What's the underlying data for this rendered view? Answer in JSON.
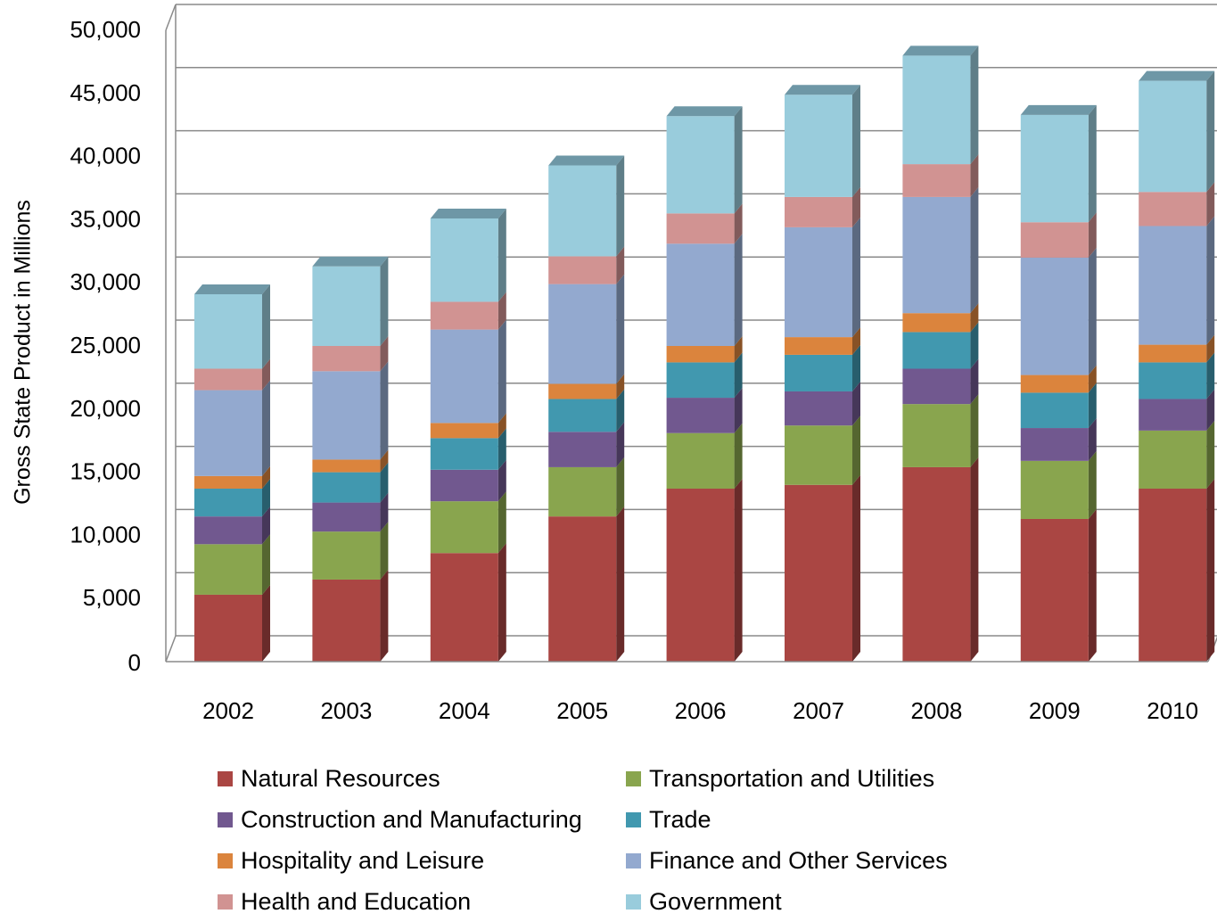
{
  "chart_data": {
    "type": "bar",
    "stacked": true,
    "style": "3d-column",
    "title": "",
    "xlabel": "",
    "ylabel": "Gross State Product in Millions",
    "ylim": [
      0,
      50000
    ],
    "yticks": [
      0,
      5000,
      10000,
      15000,
      20000,
      25000,
      30000,
      35000,
      40000,
      45000,
      50000
    ],
    "ytick_labels": [
      "0",
      "5,000",
      "10,000",
      "15,000",
      "20,000",
      "25,000",
      "30,000",
      "35,000",
      "40,000",
      "45,000",
      "50,000"
    ],
    "grid": true,
    "legend_position": "bottom",
    "categories": [
      "2002",
      "2003",
      "2004",
      "2005",
      "2006",
      "2007",
      "2008",
      "2009",
      "2010"
    ],
    "series": [
      {
        "name": "Natural Resources",
        "color": "#AA4643",
        "values": [
          5300,
          6500,
          8600,
          11500,
          13700,
          14000,
          15400,
          11300,
          13700
        ]
      },
      {
        "name": "Transportation and Utilities",
        "color": "#89A54E",
        "values": [
          4000,
          3800,
          4100,
          3900,
          4400,
          4700,
          5000,
          4600,
          4600
        ]
      },
      {
        "name": "Construction and Manufacturing",
        "color": "#71588F",
        "values": [
          2200,
          2300,
          2500,
          2800,
          2800,
          2700,
          2800,
          2600,
          2500
        ]
      },
      {
        "name": "Trade",
        "color": "#4198AF",
        "values": [
          2200,
          2400,
          2500,
          2600,
          2800,
          2900,
          2900,
          2800,
          2900
        ]
      },
      {
        "name": "Hospitality and Leisure",
        "color": "#DB843D",
        "values": [
          1000,
          1000,
          1200,
          1200,
          1300,
          1400,
          1500,
          1400,
          1400
        ]
      },
      {
        "name": "Finance and Other Services",
        "color": "#93A9CF",
        "values": [
          6800,
          7000,
          7400,
          7900,
          8100,
          8700,
          9200,
          9300,
          9400
        ]
      },
      {
        "name": "Health and Education",
        "color": "#D19392",
        "values": [
          1700,
          2000,
          2200,
          2200,
          2400,
          2400,
          2600,
          2800,
          2700
        ]
      },
      {
        "name": "Government",
        "color": "#99CCDC",
        "values": [
          5900,
          6300,
          6600,
          7200,
          7700,
          8100,
          8600,
          8500,
          8800
        ]
      }
    ]
  }
}
